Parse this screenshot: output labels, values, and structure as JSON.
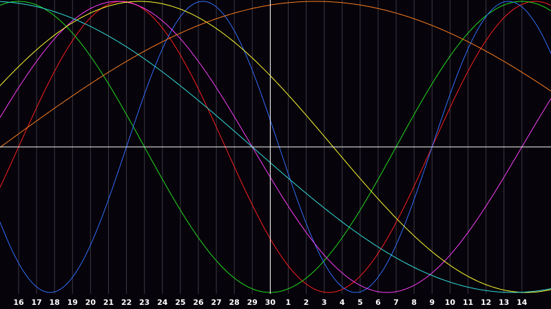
{
  "chart_data": {
    "type": "line",
    "title": "",
    "xlabel": "",
    "ylabel": "",
    "background": "#07030a",
    "gridline_color": "#3a3a45",
    "axis_color": "#ffffff",
    "grid": true,
    "ylim": [
      -1,
      1
    ],
    "x": [
      16,
      17,
      18,
      19,
      20,
      21,
      22,
      23,
      24,
      25,
      26,
      27,
      28,
      29,
      30,
      1,
      2,
      3,
      4,
      5,
      6,
      7,
      8,
      9,
      10,
      11,
      12,
      13,
      14
    ],
    "x_axis_line_at": 30,
    "series": [
      {
        "color": "#ff2020",
        "period_days": 23,
        "phase_days": 0
      },
      {
        "color": "#20e020",
        "period_days": 28,
        "phase_days": -7
      },
      {
        "color": "#3070ff",
        "period_days": 17,
        "phase_days": -11
      },
      {
        "color": "#ff40ff",
        "period_days": 30,
        "phase_days": -2
      },
      {
        "color": "#ffff30",
        "period_days": 43,
        "phase_days": -4
      },
      {
        "color": "#ff8020",
        "period_days": 70,
        "phase_days": -1
      },
      {
        "color": "#30e0e0",
        "period_days": 58,
        "phase_days": -16
      }
    ]
  }
}
